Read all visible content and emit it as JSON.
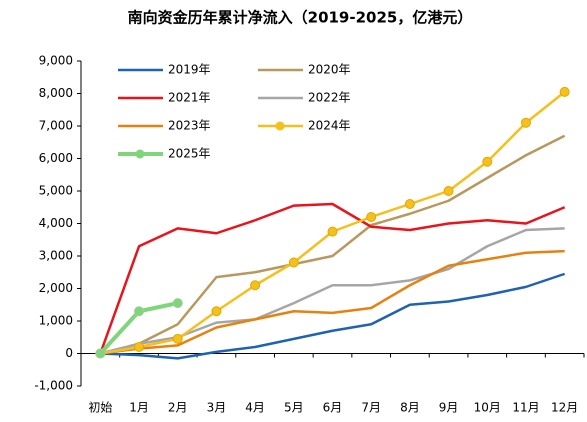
{
  "chart_data": {
    "type": "line",
    "title": "南向资金历年累计净流入（2019-2025，亿港元）",
    "categories": [
      "初始",
      "1月",
      "2月",
      "3月",
      "4月",
      "5月",
      "6月",
      "7月",
      "8月",
      "9月",
      "10月",
      "11月",
      "12月"
    ],
    "series": [
      {
        "name": "2019年",
        "color": "#1f63b0",
        "values": [
          0,
          -50,
          -150,
          50,
          200,
          450,
          700,
          900,
          1500,
          1600,
          1800,
          2050,
          2450
        ]
      },
      {
        "name": "2020年",
        "color": "#b8985e",
        "values": [
          0,
          300,
          900,
          2350,
          2500,
          2750,
          3000,
          3950,
          4300,
          4700,
          5400,
          6100,
          6700
        ]
      },
      {
        "name": "2021年",
        "color": "#e8141c",
        "values": [
          0,
          3300,
          3850,
          3700,
          4100,
          4550,
          4600,
          3900,
          3800,
          4000,
          4100,
          4000,
          4500
        ]
      },
      {
        "name": "2022年",
        "color": "#a6a6a6",
        "values": [
          0,
          300,
          500,
          950,
          1050,
          1550,
          2100,
          2100,
          2250,
          2600,
          3300,
          3800,
          3850
        ]
      },
      {
        "name": "2023年",
        "color": "#e5820f",
        "values": [
          0,
          150,
          250,
          800,
          1050,
          1300,
          1250,
          1400,
          2100,
          2700,
          2900,
          3100,
          3150
        ]
      },
      {
        "name": "2024年",
        "color": "#f5bf1c",
        "values": [
          0,
          200,
          450,
          1300,
          2100,
          2800,
          3750,
          4200,
          4600,
          5000,
          5900,
          7100,
          8050
        ],
        "markers": true
      },
      {
        "name": "2025年",
        "color": "#7fd67a",
        "values": [
          0,
          1300,
          1550,
          null,
          null,
          null,
          null,
          null,
          null,
          null,
          null,
          null,
          null
        ],
        "markers": true
      }
    ],
    "ylim": [
      -1000,
      9000
    ],
    "yticks": [
      {
        "value": -1000,
        "label": "-1,000"
      },
      0,
      {
        "value": 1000,
        "label": "1,000"
      },
      {
        "value": 2000,
        "label": "2,000"
      },
      {
        "value": 3000,
        "label": "3,000"
      },
      {
        "value": 4000,
        "label": "4,000"
      },
      {
        "value": 5000,
        "label": "5,000"
      },
      {
        "value": 6000,
        "label": "6,000"
      },
      {
        "value": 7000,
        "label": "7,000"
      },
      {
        "value": 8000,
        "label": "8,000"
      },
      {
        "value": 9000,
        "label": "9,000"
      }
    ],
    "grid": false
  }
}
